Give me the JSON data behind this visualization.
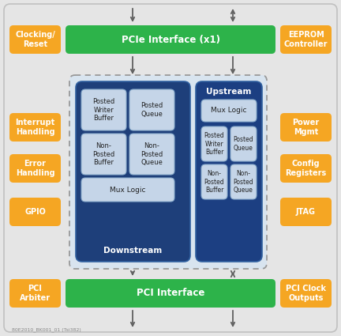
{
  "bg_color": "#e5e5e5",
  "green_color": "#2db34a",
  "orange_color": "#f5a623",
  "dark_blue_ds": "#1e3f7a",
  "dark_blue_us": "#1e4080",
  "light_blue_box": "#c5d5e8",
  "dashed_fill": "#d8e4ef",
  "dashed_edge": "#999999",
  "arrow_color": "#606060",
  "white": "#ffffff",
  "watermark": "80E2010_BK001_01 (Tsi382)",
  "pcie_label": "PCIe Interface (x1)",
  "pci_label": "PCI Interface",
  "clocking_label": "Clocking/\nReset",
  "eeprom_label": "EEPROM\nController",
  "interrupt_label": "Interrupt\nHandling",
  "power_label": "Power\nMgmt",
  "error_label": "Error\nHandling",
  "config_label": "Config\nRegisters",
  "gpio_label": "GPIO",
  "jtag_label": "JTAG",
  "pci_arb_label": "PCI\nArbiter",
  "pci_clock_label": "PCI Clock\nOutputs",
  "downstream_label": "Downstream",
  "upstream_label": "Upstream",
  "ds_pw_buf": "Posted\nWriter\nBuffer",
  "ds_pq": "Posted\nQueue",
  "ds_npb": "Non-\nPosted\nBuffer",
  "ds_npq": "Non-\nPosted\nQueue",
  "ds_mux": "Mux Logic",
  "us_mux": "Mux Logic",
  "us_pw_buf": "Posted\nWriter\nBuffer",
  "us_pq": "Posted\nQueue",
  "us_npb": "Non-\nPosted\nBuffer",
  "us_npq": "Non-\nPosted\nQueue"
}
